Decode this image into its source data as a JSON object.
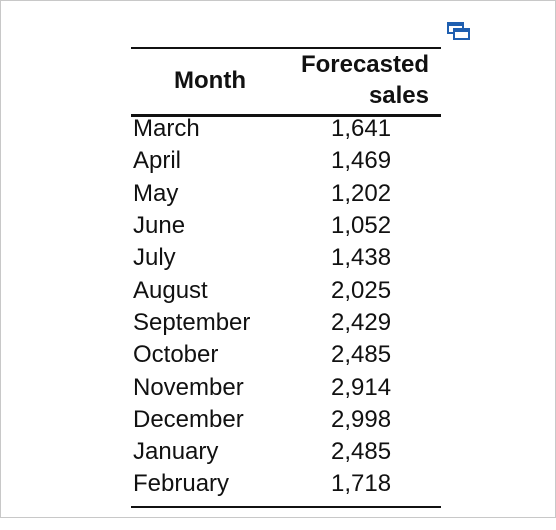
{
  "table": {
    "headers": {
      "month": "Month",
      "sales": [
        "Forecasted",
        "sales"
      ]
    },
    "rows": [
      {
        "month": "March",
        "sales": "1,641"
      },
      {
        "month": "April",
        "sales": "1,469"
      },
      {
        "month": "May",
        "sales": "1,202"
      },
      {
        "month": "June",
        "sales": "1,052"
      },
      {
        "month": "July",
        "sales": "1,438"
      },
      {
        "month": "August",
        "sales": "2,025"
      },
      {
        "month": "September",
        "sales": "2,429"
      },
      {
        "month": "October",
        "sales": "2,485"
      },
      {
        "month": "November",
        "sales": "2,914"
      },
      {
        "month": "December",
        "sales": "2,998"
      },
      {
        "month": "January",
        "sales": "2,485"
      },
      {
        "month": "February",
        "sales": "1,718"
      }
    ]
  },
  "icons": {
    "expand": "expand-window-icon"
  },
  "colors": {
    "icon": "#1f5fb0",
    "text": "#111111",
    "border": "#c8c8c8"
  }
}
